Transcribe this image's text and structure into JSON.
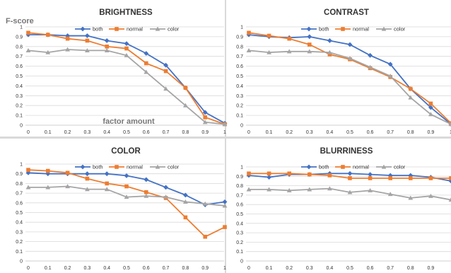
{
  "chart_data": [
    {
      "type": "line",
      "title": "BRIGHTNESS",
      "ylabel": "F-score",
      "xlabel": "factor amount",
      "x": [
        0,
        0.1,
        0.2,
        0.3,
        0.4,
        0.5,
        0.6,
        0.7,
        0.8,
        0.9,
        1
      ],
      "xticks": [
        "0",
        "0.1",
        "0.2",
        "0.3",
        "0.4",
        "0.5",
        "0.6",
        "0.7",
        "0.8",
        "0.9",
        "1"
      ],
      "yticks": [
        "0",
        "0.1",
        "0.2",
        "0.3",
        "0.4",
        "0.5",
        "0.6",
        "0.7",
        "0.8",
        "0.9",
        "1"
      ],
      "ylim": [
        0,
        1
      ],
      "grid": true,
      "legend": "top",
      "series": [
        {
          "name": "both",
          "color": "#4472C4",
          "marker": "diamond",
          "values": [
            0.92,
            0.92,
            0.91,
            0.91,
            0.86,
            0.83,
            0.73,
            0.61,
            0.38,
            0.13,
            0.02
          ]
        },
        {
          "name": "normal",
          "color": "#ED7D31",
          "marker": "square",
          "values": [
            0.94,
            0.92,
            0.88,
            0.86,
            0.8,
            0.78,
            0.63,
            0.55,
            0.38,
            0.08,
            0.01
          ]
        },
        {
          "name": "color",
          "color": "#A5A5A5",
          "marker": "triangle",
          "values": [
            0.76,
            0.74,
            0.77,
            0.76,
            0.76,
            0.71,
            0.54,
            0.37,
            0.2,
            0.03,
            0.01
          ]
        }
      ]
    },
    {
      "type": "line",
      "title": "CONTRAST",
      "x": [
        0,
        0.1,
        0.2,
        0.3,
        0.4,
        0.5,
        0.6,
        0.7,
        0.8,
        0.9,
        1
      ],
      "xticks": [
        "0",
        "0.1",
        "0.2",
        "0.3",
        "0.4",
        "0.5",
        "0.6",
        "0.7",
        "0.8",
        "0.9",
        "1"
      ],
      "yticks": [
        "0",
        "0.1",
        "0.2",
        "0.3",
        "0.4",
        "0.5",
        "0.6",
        "0.7",
        "0.8",
        "0.9",
        "1"
      ],
      "ylim": [
        0,
        1
      ],
      "grid": true,
      "legend": "top",
      "series": [
        {
          "name": "both",
          "color": "#4472C4",
          "marker": "diamond",
          "values": [
            0.92,
            0.9,
            0.89,
            0.9,
            0.86,
            0.82,
            0.71,
            0.62,
            0.37,
            0.18,
            0.01
          ]
        },
        {
          "name": "normal",
          "color": "#ED7D31",
          "marker": "square",
          "values": [
            0.94,
            0.91,
            0.88,
            0.82,
            0.72,
            0.67,
            0.58,
            0.49,
            0.37,
            0.22,
            0.02
          ]
        },
        {
          "name": "color",
          "color": "#A5A5A5",
          "marker": "triangle",
          "values": [
            0.76,
            0.74,
            0.75,
            0.75,
            0.74,
            0.68,
            0.59,
            0.5,
            0.28,
            0.11,
            0.01
          ]
        }
      ]
    },
    {
      "type": "line",
      "title": "COLOR",
      "x": [
        0,
        0.1,
        0.2,
        0.3,
        0.4,
        0.5,
        0.6,
        0.7,
        0.8,
        0.9,
        1
      ],
      "xticks": [
        "0",
        "0.1",
        "0.2",
        "0.3",
        "0.4",
        "0.5",
        "0.6",
        "0.7",
        "0.8",
        "0.9",
        "1"
      ],
      "yticks": [
        "0",
        "0.1",
        "0.2",
        "0.3",
        "0.4",
        "0.5",
        "0.6",
        "0.7",
        "0.8",
        "0.9",
        "1"
      ],
      "ylim": [
        0,
        1
      ],
      "grid": true,
      "legend": "top",
      "series": [
        {
          "name": "both",
          "color": "#4472C4",
          "marker": "diamond",
          "values": [
            0.91,
            0.9,
            0.9,
            0.9,
            0.9,
            0.88,
            0.84,
            0.76,
            0.68,
            0.58,
            0.61
          ]
        },
        {
          "name": "normal",
          "color": "#ED7D31",
          "marker": "square",
          "values": [
            0.94,
            0.93,
            0.91,
            0.85,
            0.8,
            0.77,
            0.71,
            0.65,
            0.45,
            0.25,
            0.35
          ]
        },
        {
          "name": "color",
          "color": "#A5A5A5",
          "marker": "triangle",
          "values": [
            0.76,
            0.76,
            0.77,
            0.74,
            0.74,
            0.66,
            0.67,
            0.66,
            0.61,
            0.59,
            0.57
          ]
        }
      ]
    },
    {
      "type": "line",
      "title": "BLURRINESS",
      "x": [
        0,
        0.1,
        0.2,
        0.3,
        0.4,
        0.5,
        0.6,
        0.7,
        0.8,
        0.9,
        1
      ],
      "xticks": [
        "0",
        "0.1",
        "0.2",
        "0.3",
        "0.4",
        "0.5",
        "0.6",
        "0.7",
        "0.8",
        "0.9"
      ],
      "yticks": [
        "0",
        "0.1",
        "0.2",
        "0.3",
        "0.4",
        "0.5",
        "0.6",
        "0.7",
        "0.8",
        "0.9",
        "1"
      ],
      "ylim": [
        0,
        1
      ],
      "grid": true,
      "legend": "top",
      "series": [
        {
          "name": "both",
          "color": "#4472C4",
          "marker": "diamond",
          "values": [
            0.91,
            0.89,
            0.92,
            0.92,
            0.93,
            0.93,
            0.92,
            0.91,
            0.91,
            0.89,
            0.85
          ]
        },
        {
          "name": "normal",
          "color": "#ED7D31",
          "marker": "square",
          "values": [
            0.93,
            0.93,
            0.93,
            0.92,
            0.91,
            0.88,
            0.88,
            0.88,
            0.88,
            0.88,
            0.88
          ]
        },
        {
          "name": "color",
          "color": "#A5A5A5",
          "marker": "triangle",
          "values": [
            0.76,
            0.76,
            0.75,
            0.76,
            0.77,
            0.73,
            0.75,
            0.71,
            0.67,
            0.69,
            0.65
          ]
        }
      ]
    }
  ]
}
